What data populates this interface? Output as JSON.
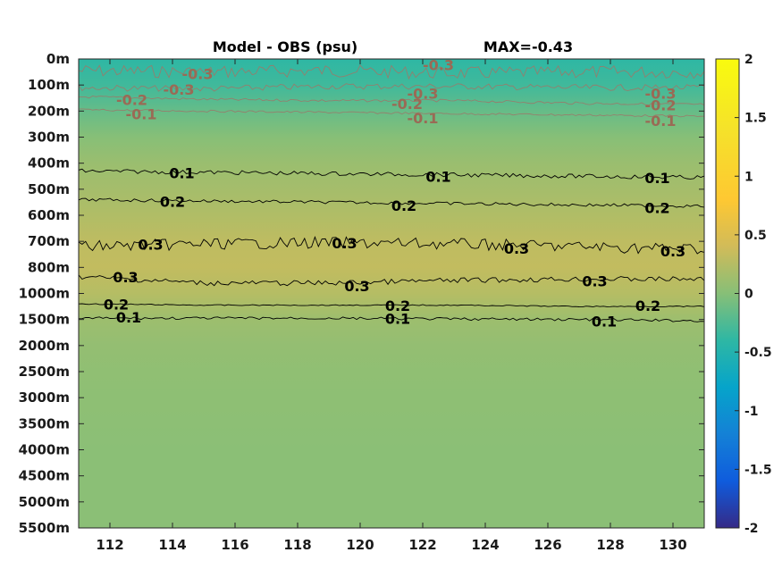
{
  "chart_data": {
    "type": "heatmap",
    "title": "Model - OBS (psu)",
    "annotation": "MAX=-0.43",
    "x_ticks": [
      "112",
      "114",
      "116",
      "118",
      "120",
      "122",
      "124",
      "126",
      "128",
      "130"
    ],
    "x_tick_values": [
      112,
      114,
      116,
      118,
      120,
      122,
      124,
      126,
      128,
      130
    ],
    "xlim": [
      111,
      131
    ],
    "y_ticks": [
      "0m",
      "100m",
      "200m",
      "300m",
      "400m",
      "500m",
      "600m",
      "700m",
      "800m",
      "1000m",
      "1500m",
      "2000m",
      "2500m",
      "3000m",
      "3500m",
      "4000m",
      "4500m",
      "5000m",
      "5500m"
    ],
    "colorbar": {
      "ticks": [
        "2",
        "1.5",
        "1",
        "0.5",
        "0",
        "-0.5",
        "-1",
        "-1.5",
        "-2"
      ],
      "tick_values": [
        2,
        1.5,
        1,
        0.5,
        0,
        -0.5,
        -1,
        -1.5,
        -2
      ],
      "range": [
        -2,
        2
      ],
      "colormap": "parula"
    },
    "depth_profile": {
      "depth_index": [
        0,
        1,
        2,
        3,
        4,
        5,
        6,
        7,
        8,
        9,
        10,
        11,
        12,
        13,
        14,
        15,
        16,
        17,
        18
      ],
      "value": [
        -0.4,
        -0.32,
        -0.15,
        0.0,
        0.1,
        0.16,
        0.22,
        0.3,
        0.32,
        0.25,
        0.12,
        0.07,
        0.05,
        0.04,
        0.03,
        0.02,
        0.02,
        0.02,
        0.02
      ]
    },
    "contours": [
      {
        "level": "-0.3",
        "color": "#9a7a6a",
        "labels": [
          {
            "x": 114.8,
            "d": 0.6
          },
          {
            "x": 122.5,
            "d": 0.25
          },
          {
            "x": 114.2,
            "d": 1.2
          },
          {
            "x": 122.0,
            "d": 1.35
          },
          {
            "x": 129.6,
            "d": 1.35
          }
        ]
      },
      {
        "level": "-0.2",
        "color": "#9a7a6a",
        "labels": [
          {
            "x": 112.7,
            "d": 1.6
          },
          {
            "x": 121.5,
            "d": 1.75
          },
          {
            "x": 129.6,
            "d": 1.8
          }
        ]
      },
      {
        "level": "-0.1",
        "color": "#9a7a6a",
        "labels": [
          {
            "x": 113.0,
            "d": 2.15
          },
          {
            "x": 122.0,
            "d": 2.3
          },
          {
            "x": 129.6,
            "d": 2.4
          }
        ]
      },
      {
        "level": "0.1",
        "color": "#000000",
        "labels": [
          {
            "x": 114.3,
            "d": 4.4
          },
          {
            "x": 122.5,
            "d": 4.55
          },
          {
            "x": 129.5,
            "d": 4.6
          }
        ]
      },
      {
        "level": "0.2",
        "color": "#000000",
        "labels": [
          {
            "x": 114.0,
            "d": 5.5
          },
          {
            "x": 121.4,
            "d": 5.65
          },
          {
            "x": 129.5,
            "d": 5.75
          }
        ]
      },
      {
        "level": "0.3",
        "color": "#000000",
        "labels": [
          {
            "x": 113.3,
            "d": 7.15
          },
          {
            "x": 119.5,
            "d": 7.1
          },
          {
            "x": 125.0,
            "d": 7.3
          },
          {
            "x": 130.0,
            "d": 7.4
          }
        ]
      },
      {
        "level": "0.3",
        "color": "#000000",
        "labels": [
          {
            "x": 112.5,
            "d": 8.4
          },
          {
            "x": 119.9,
            "d": 8.75
          },
          {
            "x": 127.5,
            "d": 8.55
          }
        ]
      },
      {
        "level": "0.2",
        "color": "#000000",
        "labels": [
          {
            "x": 112.2,
            "d": 9.45
          },
          {
            "x": 121.2,
            "d": 9.5
          },
          {
            "x": 129.2,
            "d": 9.5
          }
        ]
      },
      {
        "level": "0.1",
        "color": "#000000",
        "labels": [
          {
            "x": 112.6,
            "d": 9.95
          },
          {
            "x": 121.2,
            "d": 10.0
          },
          {
            "x": 127.8,
            "d": 10.1
          }
        ]
      }
    ],
    "contour_lines": [
      {
        "color": "#9a7a6a",
        "d": [
          0.45,
          0.5,
          0.45,
          0.55,
          0.5,
          0.5
        ],
        "wiggle": 0.25
      },
      {
        "color": "#9a7a6a",
        "d": [
          1.1,
          1.15,
          1.05,
          1.05,
          1.1,
          1.1
        ],
        "wiggle": 0.12
      },
      {
        "color": "#9a7a6a",
        "d": [
          1.45,
          1.55,
          1.6,
          1.6,
          1.7,
          1.75
        ],
        "wiggle": 0.05
      },
      {
        "color": "#9a7a6a",
        "d": [
          1.95,
          2.0,
          2.05,
          2.1,
          2.15,
          2.2
        ],
        "wiggle": 0.04
      },
      {
        "color": "#000000",
        "d": [
          4.3,
          4.35,
          4.4,
          4.45,
          4.5,
          4.55
        ],
        "wiggle": 0.08
      },
      {
        "color": "#000000",
        "d": [
          5.4,
          5.45,
          5.5,
          5.55,
          5.6,
          5.65
        ],
        "wiggle": 0.06
      },
      {
        "color": "#000000",
        "d": [
          7.2,
          7.1,
          7.05,
          7.1,
          7.2,
          7.3
        ],
        "wiggle": 0.22
      },
      {
        "color": "#000000",
        "d": [
          8.35,
          8.6,
          8.6,
          8.5,
          8.45,
          8.45
        ],
        "wiggle": 0.1
      },
      {
        "color": "#000000",
        "d": [
          9.4,
          9.45,
          9.45,
          9.45,
          9.5,
          9.5
        ],
        "wiggle": 0.02
      },
      {
        "color": "#000000",
        "d": [
          9.95,
          9.95,
          9.95,
          9.98,
          10.0,
          10.05
        ],
        "wiggle": 0.05
      }
    ]
  }
}
